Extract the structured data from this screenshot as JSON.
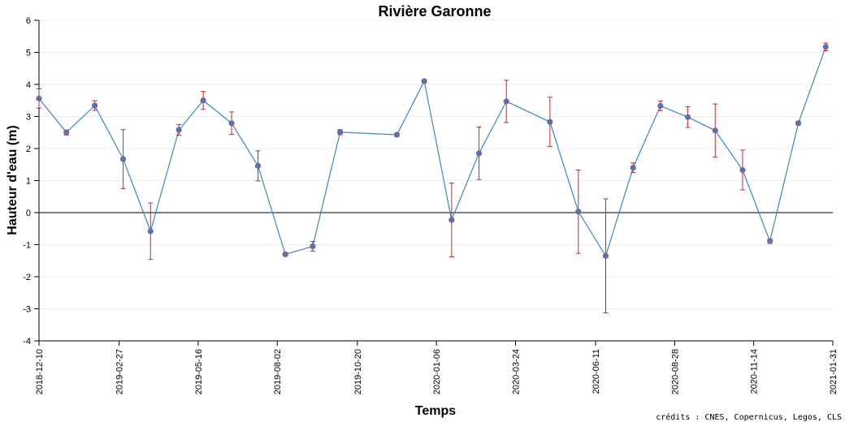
{
  "chart_data": {
    "type": "line",
    "title": "Rivière Garonne",
    "xlabel": "Temps",
    "ylabel": "Hauteur d'eau (m)",
    "credits": "crédits : CNES, Copernicus, Legos, CLS",
    "ylim": [
      -4,
      6
    ],
    "yticks": [
      -4,
      -3,
      -2,
      -1,
      0,
      1,
      2,
      3,
      4,
      5,
      6
    ],
    "xlim": [
      "2018-12-10",
      "2021-01-31"
    ],
    "xticks": [
      "2018-12-10",
      "2019-02-27",
      "2019-05-16",
      "2019-08-02",
      "2019-10-20",
      "2020-01-06",
      "2020-03-24",
      "2020-06-11",
      "2020-08-28",
      "2020-11-14",
      "2021-01-31"
    ],
    "grid": true,
    "zero_line": true,
    "line_color": "#3a87bf",
    "marker_color": "#4a78b4",
    "error_color": "#c0282d",
    "points": [
      {
        "x": "2018-12-10",
        "y": 3.56,
        "err": 0.3
      },
      {
        "x": "2019-01-06",
        "y": 2.5,
        "err": 0.08
      },
      {
        "x": "2019-02-03",
        "y": 3.34,
        "err": 0.15
      },
      {
        "x": "2019-03-03",
        "y": 1.67,
        "err": 0.92
      },
      {
        "x": "2019-03-30",
        "y": -0.58,
        "err": 0.88
      },
      {
        "x": "2019-04-27",
        "y": 2.58,
        "err": 0.17
      },
      {
        "x": "2019-05-21",
        "y": 3.5,
        "err": 0.28
      },
      {
        "x": "2019-06-18",
        "y": 2.79,
        "err": 0.35
      },
      {
        "x": "2019-07-14",
        "y": 1.46,
        "err": 0.47
      },
      {
        "x": "2019-08-10",
        "y": -1.3,
        "err": 0.06
      },
      {
        "x": "2019-09-06",
        "y": -1.05,
        "err": 0.15
      },
      {
        "x": "2019-10-03",
        "y": 2.51,
        "err": 0.08
      },
      {
        "x": "2019-11-28",
        "y": 2.43,
        "err": 0.06
      },
      {
        "x": "2019-12-25",
        "y": 4.1,
        "err": 0.05
      },
      {
        "x": "2020-01-21",
        "y": -0.23,
        "err": 1.15
      },
      {
        "x": "2020-02-17",
        "y": 1.85,
        "err": 0.82
      },
      {
        "x": "2020-03-15",
        "y": 3.47,
        "err": 0.66
      },
      {
        "x": "2020-04-27",
        "y": 2.83,
        "err": 0.77
      },
      {
        "x": "2020-05-25",
        "y": 0.03,
        "err": 1.3
      },
      {
        "x": "2020-06-21",
        "y": -1.35,
        "err": 1.78
      },
      {
        "x": "2020-07-18",
        "y": 1.4,
        "err": 0.15
      },
      {
        "x": "2020-08-14",
        "y": 3.33,
        "err": 0.15
      },
      {
        "x": "2020-09-10",
        "y": 2.98,
        "err": 0.32
      },
      {
        "x": "2020-10-07",
        "y": 2.56,
        "err": 0.83
      },
      {
        "x": "2020-11-03",
        "y": 1.33,
        "err": 0.62
      },
      {
        "x": "2020-11-30",
        "y": -0.89,
        "err": 0.07
      },
      {
        "x": "2020-12-28",
        "y": 2.79,
        "err": 0.06
      },
      {
        "x": "2021-01-24",
        "y": 5.17,
        "err": 0.12
      }
    ]
  }
}
